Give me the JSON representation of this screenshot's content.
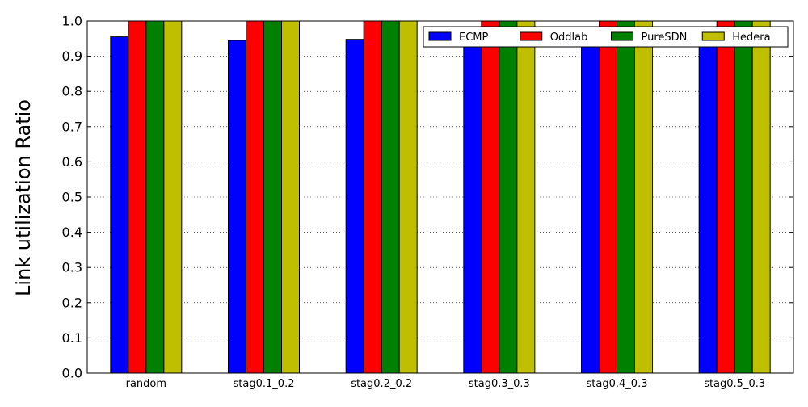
{
  "chart_data": {
    "type": "bar",
    "title": "",
    "xlabel": "",
    "ylabel": "Link utilization Ratio",
    "categories": [
      "random",
      "stag0.1_0.2",
      "stag0.2_0.2",
      "stag0.3_0.3",
      "stag0.4_0.3",
      "stag0.5_0.3"
    ],
    "ylim": [
      0.0,
      1.0
    ],
    "yticks": [
      "0.0",
      "0.1",
      "0.2",
      "0.3",
      "0.4",
      "0.5",
      "0.6",
      "0.7",
      "0.8",
      "0.9",
      "1.0"
    ],
    "grid": "horizontal dotted",
    "legend_position": "top-right",
    "series": [
      {
        "name": "ECMP",
        "color": "#0000ff",
        "values": [
          0.955,
          0.945,
          0.948,
          0.93,
          0.93,
          0.93
        ]
      },
      {
        "name": "Oddlab",
        "color": "#ff0000",
        "values": [
          1.0,
          1.0,
          1.0,
          1.0,
          1.0,
          1.0
        ]
      },
      {
        "name": "PureSDN",
        "color": "#008000",
        "values": [
          1.0,
          1.0,
          1.0,
          1.0,
          1.0,
          1.0
        ]
      },
      {
        "name": "Hedera",
        "color": "#bfbf00",
        "values": [
          1.0,
          1.0,
          1.0,
          1.0,
          1.0,
          1.0
        ]
      }
    ]
  }
}
